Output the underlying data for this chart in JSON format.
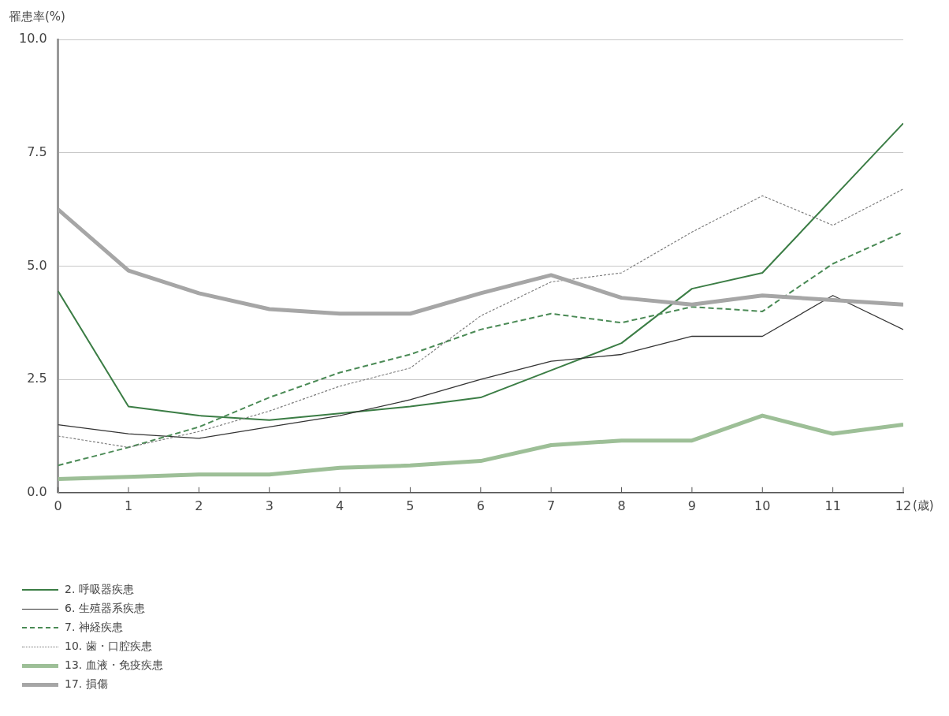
{
  "chart_data": {
    "type": "line",
    "ylabel": "罹患率(%)",
    "xlabel": "(歳)",
    "x": [
      0,
      1,
      2,
      3,
      4,
      5,
      6,
      7,
      8,
      9,
      10,
      11,
      12
    ],
    "xlim": [
      0,
      12
    ],
    "xticks": [
      0,
      1,
      2,
      3,
      4,
      5,
      6,
      7,
      8,
      9,
      10,
      11,
      12
    ],
    "ylim": [
      0,
      10
    ],
    "yticks": [
      {
        "value": 0,
        "label": "0.0"
      },
      {
        "value": 2.5,
        "label": "2.5"
      },
      {
        "value": 5,
        "label": "5.0"
      },
      {
        "value": 7.5,
        "label": "7.5"
      },
      {
        "value": 10,
        "label": "10.0"
      }
    ],
    "grid": "y",
    "legend": "bottom left",
    "marker": "none",
    "series": [
      {
        "name": "2. 呼吸器疾患",
        "color": "#3b7d45",
        "line_style": "solid",
        "values": [
          4.45,
          1.9,
          1.7,
          1.6,
          1.75,
          1.9,
          2.1,
          2.7,
          3.3,
          4.5,
          4.85,
          6.5,
          8.15
        ]
      },
      {
        "name": "6. 生殖器系疾患",
        "color": "#333333",
        "line_style": "solid",
        "values": [
          1.5,
          1.3,
          1.2,
          1.45,
          1.7,
          2.05,
          2.5,
          2.9,
          3.05,
          3.45,
          3.45,
          4.35,
          3.6
        ]
      },
      {
        "name": "7. 神経疾患",
        "color": "#4a8a55",
        "line_style": "dashed",
        "values": [
          0.6,
          1.0,
          1.45,
          2.1,
          2.65,
          3.05,
          3.6,
          3.95,
          3.75,
          4.1,
          4.0,
          5.05,
          5.75
        ]
      },
      {
        "name": "10. 歯・口腔疾患",
        "color": "#777777",
        "line_style": "dotted",
        "values": [
          1.25,
          1.0,
          1.35,
          1.8,
          2.35,
          2.75,
          3.9,
          4.65,
          4.85,
          5.75,
          6.55,
          5.9,
          6.7
        ]
      },
      {
        "name": "13. 血液・免疫疾患",
        "color": "#9dbf97",
        "line_style": "solid",
        "values": [
          0.3,
          0.35,
          0.4,
          0.4,
          0.55,
          0.6,
          0.7,
          1.05,
          1.15,
          1.15,
          1.7,
          1.3,
          1.5
        ]
      },
      {
        "name": "17. 損傷",
        "color": "#a6a6a6",
        "line_style": "solid",
        "values": [
          6.25,
          4.9,
          4.4,
          4.05,
          3.95,
          3.95,
          4.4,
          4.8,
          4.3,
          4.15,
          4.35,
          4.25,
          4.15
        ]
      }
    ]
  }
}
